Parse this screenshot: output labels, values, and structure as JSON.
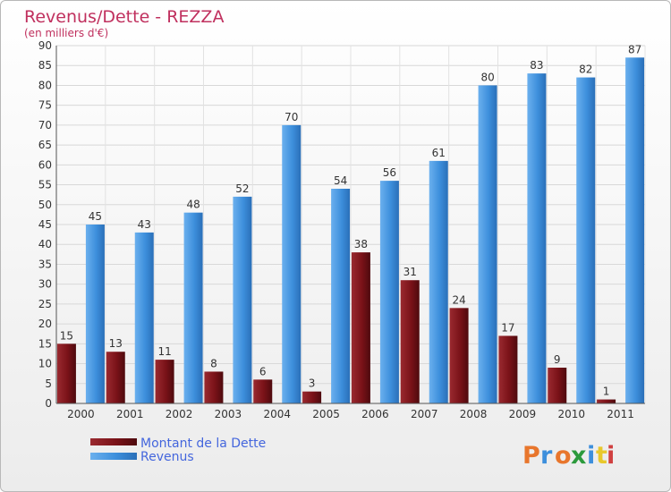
{
  "chart_data": {
    "type": "bar",
    "title": "Revenus/Dette - REZZA",
    "subtitle": "(en milliers d'€)",
    "categories": [
      "2000",
      "2001",
      "2002",
      "2003",
      "2004",
      "2005",
      "2006",
      "2007",
      "2008",
      "2009",
      "2010",
      "2011"
    ],
    "series": [
      {
        "name": "Montant de la Dette",
        "color": "#7a1218",
        "values": [
          15,
          13,
          11,
          8,
          6,
          3,
          38,
          31,
          24,
          17,
          9,
          1
        ]
      },
      {
        "name": "Revenus",
        "color": "#3d8fdc",
        "values": [
          45,
          43,
          48,
          52,
          70,
          54,
          56,
          61,
          80,
          83,
          82,
          87
        ]
      }
    ],
    "ylim": [
      0,
      90
    ],
    "ytick_step": 5,
    "grid": true,
    "legend_position": "bottom-left"
  },
  "branding": {
    "logo_text": "Proxiti",
    "logo_colors": [
      "#e8762c",
      "#3d8fdc",
      "#e8762c",
      "#2c9a3c",
      "#3d8fdc",
      "#e8c82c",
      "#d04040"
    ]
  }
}
